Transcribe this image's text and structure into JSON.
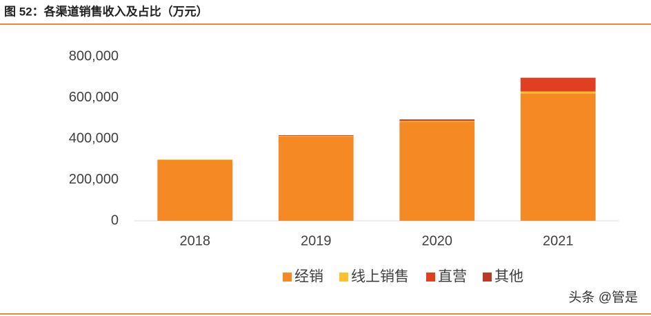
{
  "chart_data": {
    "type": "stacked_bar",
    "title": "图 52：各渠道销售收入及占比（万元）",
    "watermark": "头条 @管是",
    "categories": [
      "2018",
      "2019",
      "2020",
      "2021"
    ],
    "series": [
      {
        "name": "经销",
        "color": "#f58a25",
        "values": [
          296000,
          410000,
          482000,
          620000
        ]
      },
      {
        "name": "线上销售",
        "color": "#fbc12e",
        "values": [
          3000,
          3000,
          4000,
          10000
        ]
      },
      {
        "name": "直营",
        "color": "#e0401f",
        "values": [
          0,
          2000,
          5000,
          66000
        ]
      },
      {
        "name": "其他",
        "color": "#b83a2a",
        "values": [
          0,
          2000,
          3000,
          1000
        ]
      }
    ],
    "ylim": [
      0,
      800000
    ],
    "yticks": [
      0,
      {
        "value": 200000,
        "label": "200,000"
      },
      {
        "value": 400000,
        "label": "400,000"
      },
      {
        "value": 600000,
        "label": "600,000"
      },
      {
        "value": 800000,
        "label": "800,000"
      }
    ]
  }
}
